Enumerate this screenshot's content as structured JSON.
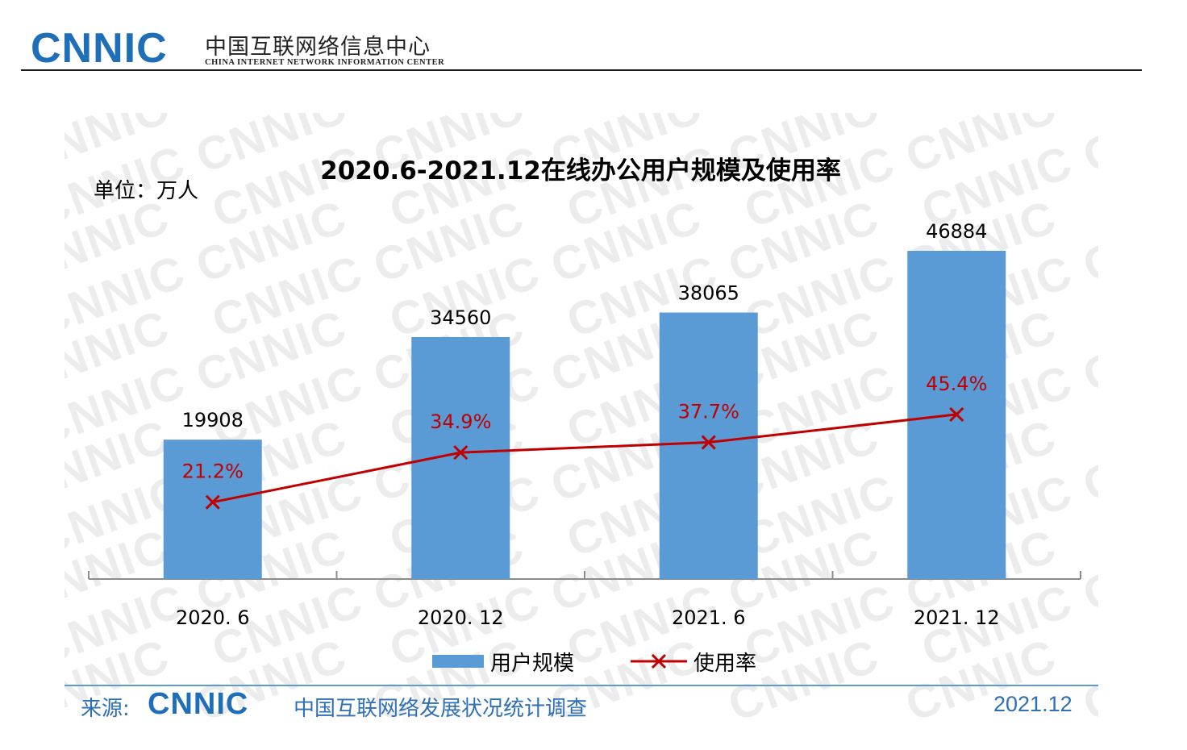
{
  "header": {
    "logo": "CNNIC",
    "org_name_cn": "中国互联网络信息中心",
    "org_name_en": "CHINA INTERNET NETWORK INFORMATION CENTER"
  },
  "watermark_text": "CNNIC",
  "chart_data": {
    "type": "bar",
    "title": "2020.6-2021.12在线办公用户规模及使用率",
    "unit_label": "单位：万人",
    "categories": [
      "2020. 6",
      "2020. 12",
      "2021. 6",
      "2021. 12"
    ],
    "series": [
      {
        "name": "用户规模",
        "type": "bar",
        "color": "#5b9bd5",
        "values": [
          19908,
          34560,
          38065,
          46884
        ],
        "labels": [
          "19908",
          "34560",
          "38065",
          "46884"
        ]
      },
      {
        "name": "使用率",
        "type": "line",
        "color": "#c00000",
        "marker": "x",
        "values": [
          21.2,
          34.9,
          37.7,
          45.4
        ],
        "labels": [
          "21.2%",
          "34.9%",
          "37.7%",
          "45.4%"
        ]
      }
    ],
    "ylim": [
      0,
      55000
    ],
    "ylim_rate": [
      0,
      100
    ],
    "legend_position": "bottom",
    "grid": false
  },
  "footer": {
    "source_label": "来源:",
    "source_logo": "CNNIC",
    "survey_name": "中国互联网络发展状况统计调查",
    "date": "2021.12"
  }
}
